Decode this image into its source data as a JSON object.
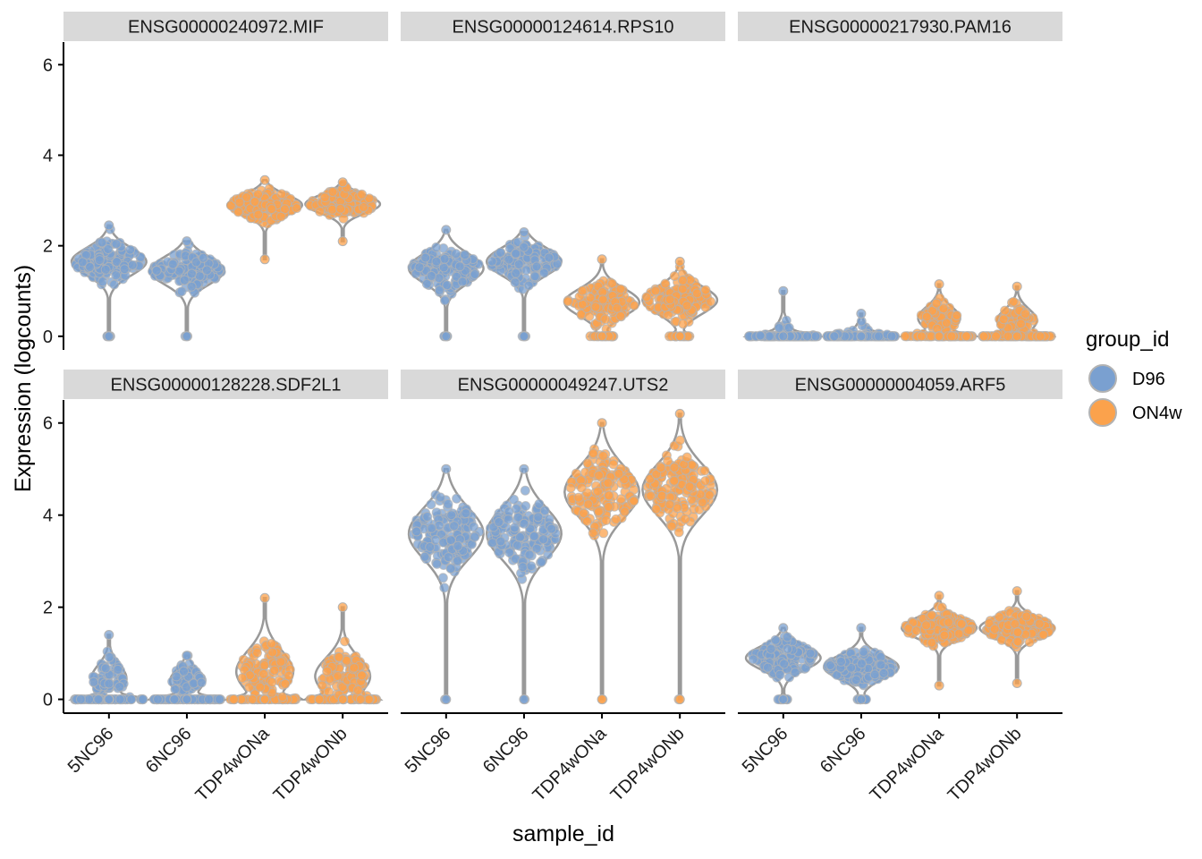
{
  "chart_data": {
    "type": "violin",
    "xlabel": "sample_id",
    "ylabel": "Expression (logcounts)",
    "ylim": [
      -0.3,
      6.5
    ],
    "y_ticks": [
      0,
      2,
      4,
      6
    ],
    "categories": [
      "5NC96",
      "6NC96",
      "TDP4wONa",
      "TDP4wONb"
    ],
    "category_group": [
      "D96",
      "D96",
      "ON4w",
      "ON4w"
    ],
    "legend": {
      "title": "group_id",
      "position": "right",
      "entries": [
        {
          "label": "D96",
          "color": "#7aa0d0"
        },
        {
          "label": "ON4w",
          "color": "#fba24c"
        }
      ]
    },
    "colors": {
      "D96": "#7aa0d0",
      "ON4w": "#fba24c",
      "violin_outline": "#999999",
      "strip_fill": "#d9d9d9"
    },
    "panels": [
      {
        "title": "ENSG00000240972.MIF",
        "violins": [
          {
            "sample": "5NC96",
            "min": 0,
            "max": 2.45,
            "median": 1.65,
            "spread": 0.3,
            "zero_frac": 0.02
          },
          {
            "sample": "6NC96",
            "min": 0,
            "max": 2.1,
            "median": 1.45,
            "spread": 0.3,
            "zero_frac": 0.02
          },
          {
            "sample": "TDP4wONa",
            "min": 1.7,
            "max": 3.45,
            "median": 2.9,
            "spread": 0.22,
            "zero_frac": 0
          },
          {
            "sample": "TDP4wONb",
            "min": 2.1,
            "max": 3.4,
            "median": 2.92,
            "spread": 0.2,
            "zero_frac": 0
          }
        ]
      },
      {
        "title": "ENSG00000124614.RPS10",
        "violins": [
          {
            "sample": "5NC96",
            "min": 0,
            "max": 2.35,
            "median": 1.5,
            "spread": 0.32,
            "zero_frac": 0.02
          },
          {
            "sample": "6NC96",
            "min": 0,
            "max": 2.3,
            "median": 1.65,
            "spread": 0.3,
            "zero_frac": 0.02
          },
          {
            "sample": "TDP4wONa",
            "min": 0,
            "max": 1.7,
            "median": 0.75,
            "spread": 0.3,
            "zero_frac": 0.1
          },
          {
            "sample": "TDP4wONb",
            "min": 0,
            "max": 1.65,
            "median": 0.8,
            "spread": 0.3,
            "zero_frac": 0.1
          }
        ]
      },
      {
        "title": "ENSG00000217930.PAM16",
        "violins": [
          {
            "sample": "5NC96",
            "min": 0,
            "max": 1.0,
            "median": 0.0,
            "spread": 0.25,
            "zero_frac": 0.85
          },
          {
            "sample": "6NC96",
            "min": 0,
            "max": 0.5,
            "median": 0.0,
            "spread": 0.2,
            "zero_frac": 0.88
          },
          {
            "sample": "TDP4wONa",
            "min": 0,
            "max": 1.15,
            "median": 0.4,
            "spread": 0.25,
            "zero_frac": 0.5
          },
          {
            "sample": "TDP4wONb",
            "min": 0,
            "max": 1.1,
            "median": 0.35,
            "spread": 0.25,
            "zero_frac": 0.5
          }
        ]
      },
      {
        "title": "ENSG00000128228.SDF2L1",
        "violins": [
          {
            "sample": "5NC96",
            "min": 0,
            "max": 1.4,
            "median": 0.45,
            "spread": 0.3,
            "zero_frac": 0.6
          },
          {
            "sample": "6NC96",
            "min": 0,
            "max": 0.95,
            "median": 0.4,
            "spread": 0.25,
            "zero_frac": 0.65
          },
          {
            "sample": "TDP4wONa",
            "min": 0,
            "max": 2.2,
            "median": 0.6,
            "spread": 0.45,
            "zero_frac": 0.3
          },
          {
            "sample": "TDP4wONb",
            "min": 0,
            "max": 2.0,
            "median": 0.5,
            "spread": 0.4,
            "zero_frac": 0.3
          }
        ]
      },
      {
        "title": "ENSG00000049247.UTS2",
        "violins": [
          {
            "sample": "5NC96",
            "min": 0,
            "max": 5.0,
            "median": 3.6,
            "spread": 0.55,
            "zero_frac": 0.01
          },
          {
            "sample": "6NC96",
            "min": 0,
            "max": 5.0,
            "median": 3.6,
            "spread": 0.55,
            "zero_frac": 0.01
          },
          {
            "sample": "TDP4wONa",
            "min": 0,
            "max": 6.0,
            "median": 4.5,
            "spread": 0.55,
            "zero_frac": 0.005
          },
          {
            "sample": "TDP4wONb",
            "min": 0,
            "max": 6.2,
            "median": 4.55,
            "spread": 0.55,
            "zero_frac": 0.005
          }
        ]
      },
      {
        "title": "ENSG00000004059.ARF5",
        "violins": [
          {
            "sample": "5NC96",
            "min": 0,
            "max": 1.55,
            "median": 0.9,
            "spread": 0.25,
            "zero_frac": 0.05
          },
          {
            "sample": "6NC96",
            "min": 0,
            "max": 1.55,
            "median": 0.7,
            "spread": 0.25,
            "zero_frac": 0.05
          },
          {
            "sample": "TDP4wONa",
            "min": 0.3,
            "max": 2.25,
            "median": 1.55,
            "spread": 0.22,
            "zero_frac": 0
          },
          {
            "sample": "TDP4wONb",
            "min": 0.35,
            "max": 2.35,
            "median": 1.55,
            "spread": 0.22,
            "zero_frac": 0
          }
        ]
      }
    ]
  }
}
